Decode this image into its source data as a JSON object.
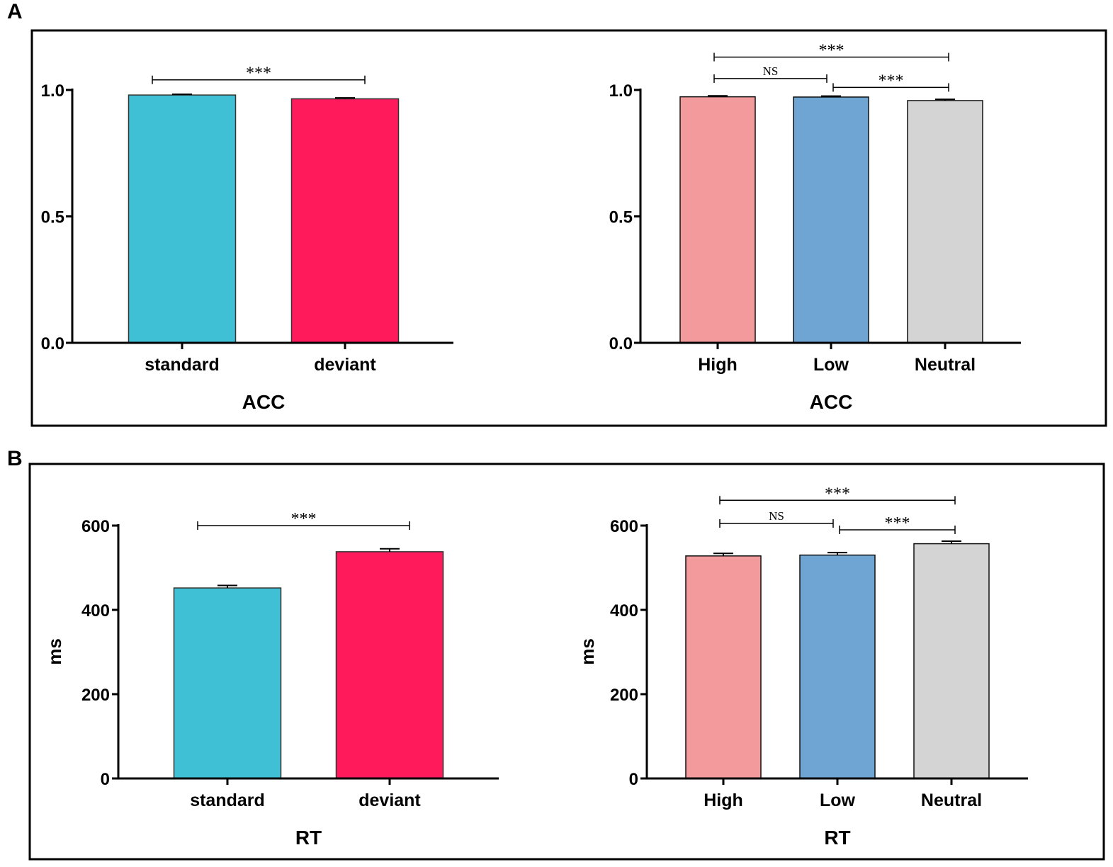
{
  "panels": [
    {
      "label": "A"
    },
    {
      "label": "B"
    }
  ],
  "chart_data": [
    {
      "type": "bar",
      "panel": "A",
      "categories": [
        "standard",
        "deviant"
      ],
      "values": [
        0.98,
        0.965
      ],
      "errors": [
        0.003,
        0.004
      ],
      "colors": [
        "#40c0d4",
        "#ff1a5c"
      ],
      "xlabel": "ACC",
      "ylabel": "",
      "ylim": [
        0,
        1.0
      ],
      "yticks": [
        0.0,
        0.5,
        1.0
      ],
      "ytick_labels": [
        "0.0",
        "0.5",
        "1.0"
      ],
      "brackets": [
        {
          "from": 0,
          "to": 1,
          "label": "***",
          "level": 1.04
        }
      ]
    },
    {
      "type": "bar",
      "panel": "A",
      "categories": [
        "High",
        "Low",
        "Neutral"
      ],
      "values": [
        0.973,
        0.972,
        0.958
      ],
      "errors": [
        0.004,
        0.004,
        0.005
      ],
      "colors": [
        "#f29a9c",
        "#6fa5d2",
        "#d4d4d4"
      ],
      "xlabel": "ACC",
      "ylabel": "",
      "ylim": [
        0,
        1.0
      ],
      "yticks": [
        0.0,
        0.5,
        1.0
      ],
      "ytick_labels": [
        "0.0",
        "0.5",
        "1.0"
      ],
      "brackets": [
        {
          "from": 0,
          "to": 1,
          "label": "NS",
          "level": 1.045
        },
        {
          "from": 1,
          "to": 2,
          "label": "***",
          "level": 1.01
        },
        {
          "from": 0,
          "to": 2,
          "label": "***",
          "level": 1.13
        }
      ]
    },
    {
      "type": "bar",
      "panel": "B",
      "categories": [
        "standard",
        "deviant"
      ],
      "values": [
        452,
        538
      ],
      "errors": [
        6,
        7
      ],
      "colors": [
        "#40c0d4",
        "#ff1a5c"
      ],
      "xlabel": "RT",
      "ylabel": "ms",
      "ylim": [
        0,
        600
      ],
      "yticks": [
        0,
        200,
        400,
        600
      ],
      "ytick_labels": [
        "0",
        "200",
        "400",
        "600"
      ],
      "brackets": [
        {
          "from": 0,
          "to": 1,
          "label": "***",
          "level": 600
        }
      ]
    },
    {
      "type": "bar",
      "panel": "B",
      "categories": [
        "High",
        "Low",
        "Neutral"
      ],
      "values": [
        528,
        530,
        557
      ],
      "errors": [
        6,
        6,
        6
      ],
      "colors": [
        "#f29a9c",
        "#6fa5d2",
        "#d4d4d4"
      ],
      "xlabel": "RT",
      "ylabel": "ms",
      "ylim": [
        0,
        600
      ],
      "yticks": [
        0,
        200,
        400,
        600
      ],
      "ytick_labels": [
        "0",
        "200",
        "400",
        "600"
      ],
      "brackets": [
        {
          "from": 0,
          "to": 1,
          "label": "NS",
          "level": 605
        },
        {
          "from": 1,
          "to": 2,
          "label": "***",
          "level": 590
        },
        {
          "from": 0,
          "to": 2,
          "label": "***",
          "level": 660
        }
      ]
    }
  ]
}
